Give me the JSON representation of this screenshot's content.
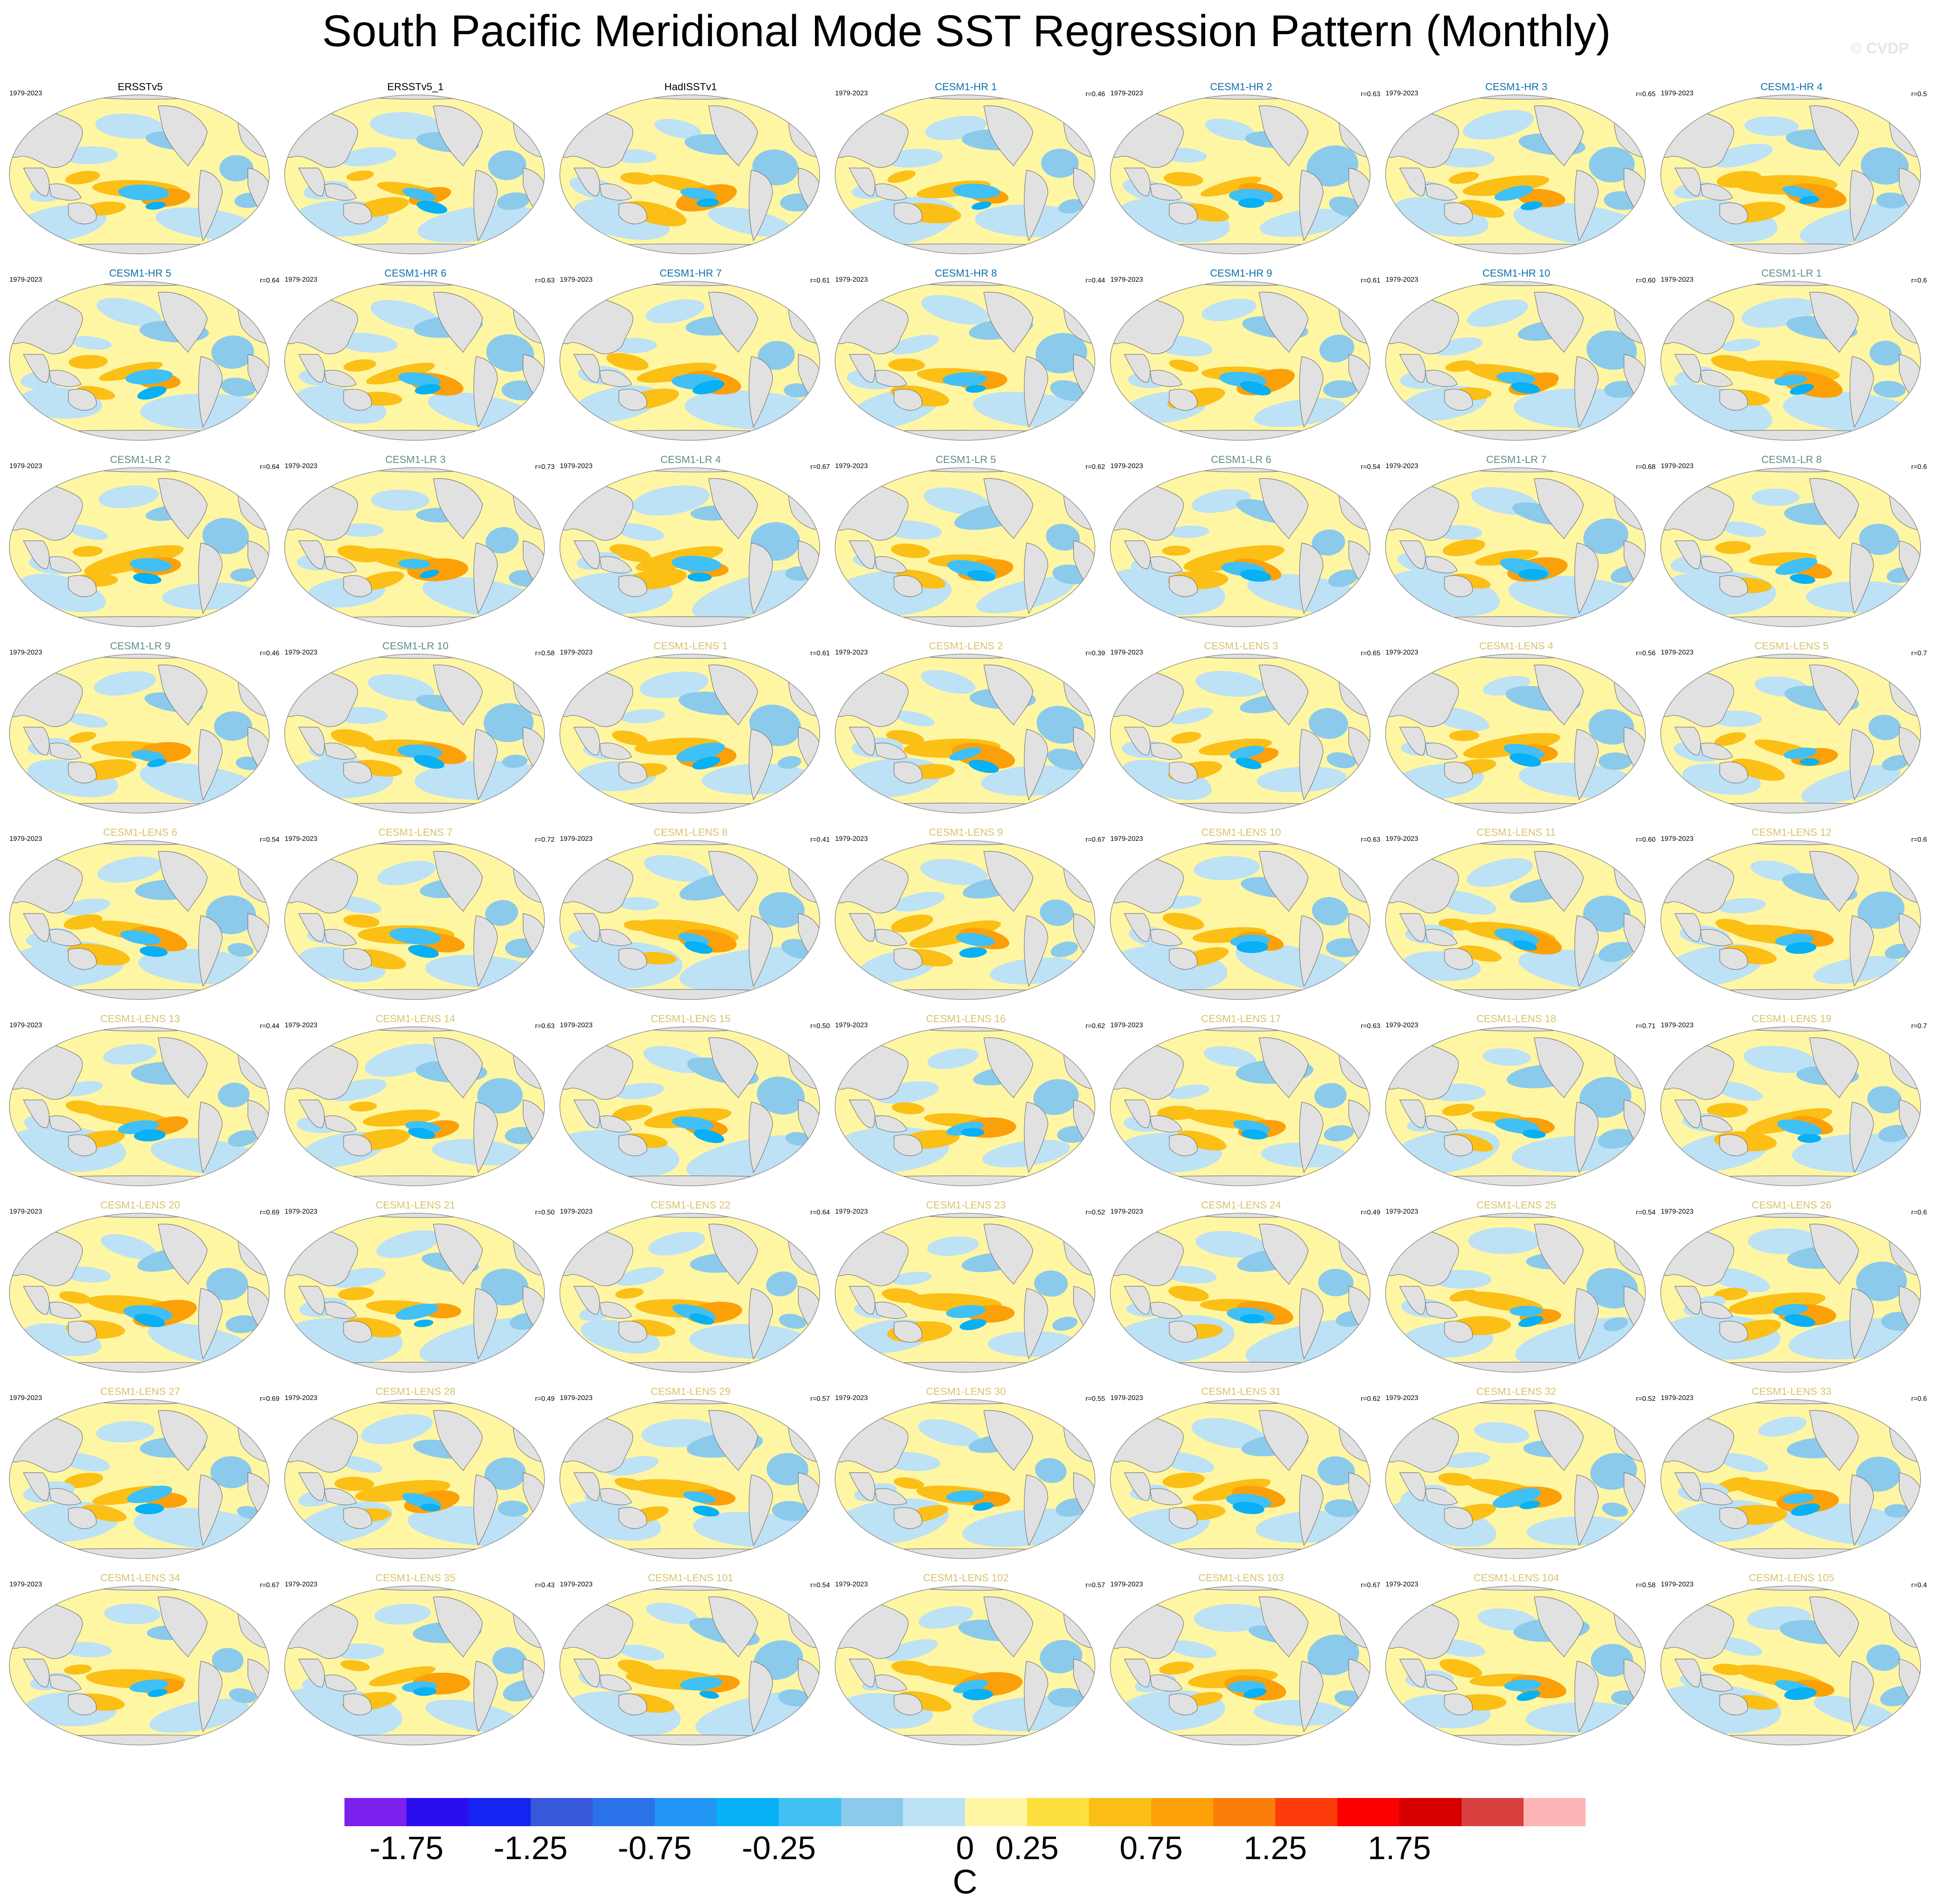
{
  "title": "South Pacific Meridional Mode SST Regression Pattern (Monthly)",
  "watermark": "© CVDP",
  "colors": {
    "ocean_neutral": "#fff6a4",
    "land": "#e1e1e1",
    "observations_title": "#000000",
    "cesm1_hr_title": "#0e6fae",
    "cesm1_lr_title": "#5f8c8b",
    "cesm1_lens_title": "#d8c36b"
  },
  "chart_data": {
    "type": "heatmap",
    "projection": "global map (Robinson), Pacific-centered",
    "panels": [
      {
        "title": "ERSSTv5",
        "group": "obs",
        "years": "1979-2023",
        "r": ""
      },
      {
        "title": "ERSSTv5_1",
        "group": "obs",
        "years": "",
        "r": ""
      },
      {
        "title": "HadISSTv1",
        "group": "obs",
        "years": "",
        "r": ""
      },
      {
        "title": "CESM1-HR 1",
        "group": "hr",
        "years": "1979-2023",
        "r": "r=0.46"
      },
      {
        "title": "CESM1-HR 2",
        "group": "hr",
        "years": "1979-2023",
        "r": "r=0.63"
      },
      {
        "title": "CESM1-HR 3",
        "group": "hr",
        "years": "1979-2023",
        "r": "r=0.65"
      },
      {
        "title": "CESM1-HR 4",
        "group": "hr",
        "years": "1979-2023",
        "r": "r=0.5"
      },
      {
        "title": "CESM1-HR 5",
        "group": "hr",
        "years": "1979-2023",
        "r": "r=0.64"
      },
      {
        "title": "CESM1-HR 6",
        "group": "hr",
        "years": "1979-2023",
        "r": "r=0.63"
      },
      {
        "title": "CESM1-HR 7",
        "group": "hr",
        "years": "1979-2023",
        "r": "r=0.61"
      },
      {
        "title": "CESM1-HR 8",
        "group": "hr",
        "years": "1979-2023",
        "r": "r=0.44"
      },
      {
        "title": "CESM1-HR 9",
        "group": "hr",
        "years": "1979-2023",
        "r": "r=0.61"
      },
      {
        "title": "CESM1-HR 10",
        "group": "hr",
        "years": "1979-2023",
        "r": "r=0.60"
      },
      {
        "title": "CESM1-LR 1",
        "group": "lr",
        "years": "1979-2023",
        "r": "r=0.6"
      },
      {
        "title": "CESM1-LR 2",
        "group": "lr",
        "years": "1979-2023",
        "r": "r=0.64"
      },
      {
        "title": "CESM1-LR 3",
        "group": "lr",
        "years": "1979-2023",
        "r": "r=0.73"
      },
      {
        "title": "CESM1-LR 4",
        "group": "lr",
        "years": "1979-2023",
        "r": "r=0.67"
      },
      {
        "title": "CESM1-LR 5",
        "group": "lr",
        "years": "1979-2023",
        "r": "r=0.62"
      },
      {
        "title": "CESM1-LR 6",
        "group": "lr",
        "years": "1979-2023",
        "r": "r=0.54"
      },
      {
        "title": "CESM1-LR 7",
        "group": "lr",
        "years": "1979-2023",
        "r": "r=0.68"
      },
      {
        "title": "CESM1-LR 8",
        "group": "lr",
        "years": "1979-2023",
        "r": "r=0.6"
      },
      {
        "title": "CESM1-LR 9",
        "group": "lr",
        "years": "1979-2023",
        "r": "r=0.46"
      },
      {
        "title": "CESM1-LR 10",
        "group": "lr",
        "years": "1979-2023",
        "r": "r=0.58"
      },
      {
        "title": "CESM1-LENS 1",
        "group": "lens",
        "years": "1979-2023",
        "r": "r=0.61"
      },
      {
        "title": "CESM1-LENS 2",
        "group": "lens",
        "years": "1979-2023",
        "r": "r=0.39"
      },
      {
        "title": "CESM1-LENS 3",
        "group": "lens",
        "years": "1979-2023",
        "r": "r=0.65"
      },
      {
        "title": "CESM1-LENS 4",
        "group": "lens",
        "years": "1979-2023",
        "r": "r=0.56"
      },
      {
        "title": "CESM1-LENS 5",
        "group": "lens",
        "years": "1979-2023",
        "r": "r=0.7"
      },
      {
        "title": "CESM1-LENS 6",
        "group": "lens",
        "years": "1979-2023",
        "r": "r=0.54"
      },
      {
        "title": "CESM1-LENS 7",
        "group": "lens",
        "years": "1979-2023",
        "r": "r=0.72"
      },
      {
        "title": "CESM1-LENS 8",
        "group": "lens",
        "years": "1979-2023",
        "r": "r=0.41"
      },
      {
        "title": "CESM1-LENS 9",
        "group": "lens",
        "years": "1979-2023",
        "r": "r=0.67"
      },
      {
        "title": "CESM1-LENS 10",
        "group": "lens",
        "years": "1979-2023",
        "r": "r=0.63"
      },
      {
        "title": "CESM1-LENS 11",
        "group": "lens",
        "years": "1979-2023",
        "r": "r=0.60"
      },
      {
        "title": "CESM1-LENS 12",
        "group": "lens",
        "years": "1979-2023",
        "r": "r=0.6"
      },
      {
        "title": "CESM1-LENS 13",
        "group": "lens",
        "years": "1979-2023",
        "r": "r=0.44"
      },
      {
        "title": "CESM1-LENS 14",
        "group": "lens",
        "years": "1979-2023",
        "r": "r=0.63"
      },
      {
        "title": "CESM1-LENS 15",
        "group": "lens",
        "years": "1979-2023",
        "r": "r=0.50"
      },
      {
        "title": "CESM1-LENS 16",
        "group": "lens",
        "years": "1979-2023",
        "r": "r=0.62"
      },
      {
        "title": "CESM1-LENS 17",
        "group": "lens",
        "years": "1979-2023",
        "r": "r=0.63"
      },
      {
        "title": "CESM1-LENS 18",
        "group": "lens",
        "years": "1979-2023",
        "r": "r=0.71"
      },
      {
        "title": "CESM1-LENS 19",
        "group": "lens",
        "years": "1979-2023",
        "r": "r=0.7"
      },
      {
        "title": "CESM1-LENS 20",
        "group": "lens",
        "years": "1979-2023",
        "r": "r=0.69"
      },
      {
        "title": "CESM1-LENS 21",
        "group": "lens",
        "years": "1979-2023",
        "r": "r=0.50"
      },
      {
        "title": "CESM1-LENS 22",
        "group": "lens",
        "years": "1979-2023",
        "r": "r=0.64"
      },
      {
        "title": "CESM1-LENS 23",
        "group": "lens",
        "years": "1979-2023",
        "r": "r=0.52"
      },
      {
        "title": "CESM1-LENS 24",
        "group": "lens",
        "years": "1979-2023",
        "r": "r=0.49"
      },
      {
        "title": "CESM1-LENS 25",
        "group": "lens",
        "years": "1979-2023",
        "r": "r=0.54"
      },
      {
        "title": "CESM1-LENS 26",
        "group": "lens",
        "years": "1979-2023",
        "r": "r=0.6"
      },
      {
        "title": "CESM1-LENS 27",
        "group": "lens",
        "years": "1979-2023",
        "r": "r=0.69"
      },
      {
        "title": "CESM1-LENS 28",
        "group": "lens",
        "years": "1979-2023",
        "r": "r=0.49"
      },
      {
        "title": "CESM1-LENS 29",
        "group": "lens",
        "years": "1979-2023",
        "r": "r=0.57"
      },
      {
        "title": "CESM1-LENS 30",
        "group": "lens",
        "years": "1979-2023",
        "r": "r=0.55"
      },
      {
        "title": "CESM1-LENS 31",
        "group": "lens",
        "years": "1979-2023",
        "r": "r=0.62"
      },
      {
        "title": "CESM1-LENS 32",
        "group": "lens",
        "years": "1979-2023",
        "r": "r=0.52"
      },
      {
        "title": "CESM1-LENS 33",
        "group": "lens",
        "years": "1979-2023",
        "r": "r=0.6"
      },
      {
        "title": "CESM1-LENS 34",
        "group": "lens",
        "years": "1979-2023",
        "r": "r=0.67"
      },
      {
        "title": "CESM1-LENS 35",
        "group": "lens",
        "years": "1979-2023",
        "r": "r=0.43"
      },
      {
        "title": "CESM1-LENS 101",
        "group": "lens",
        "years": "1979-2023",
        "r": "r=0.54"
      },
      {
        "title": "CESM1-LENS 102",
        "group": "lens",
        "years": "1979-2023",
        "r": "r=0.57"
      },
      {
        "title": "CESM1-LENS 103",
        "group": "lens",
        "years": "1979-2023",
        "r": "r=0.67"
      },
      {
        "title": "CESM1-LENS 104",
        "group": "lens",
        "years": "1979-2023",
        "r": "r=0.58"
      },
      {
        "title": "CESM1-LENS 105",
        "group": "lens",
        "years": "1979-2023",
        "r": "r=0.4"
      }
    ],
    "colorbar": {
      "unit": "C",
      "tick_labels": [
        "-1.75",
        "-1.25",
        "-0.75",
        "-0.25",
        "0",
        "0.25",
        "0.75",
        "1.25",
        "1.75"
      ],
      "tick_boundaries": [
        1,
        3,
        5,
        7,
        10,
        11,
        13,
        15,
        17
      ],
      "colors": [
        "#7c20ee",
        "#2a0ef0",
        "#1624f2",
        "#3858da",
        "#2c72e8",
        "#2196f4",
        "#08b0f5",
        "#40c0f4",
        "#8ccaec",
        "#bde1f5",
        "#fff6a4",
        "#fde040",
        "#fbbf16",
        "#fca00a",
        "#fb7d0a",
        "#fb3c0a",
        "#fb0000",
        "#d60000",
        "#d84040",
        "#fdb4b4"
      ]
    },
    "legend": "bottom"
  }
}
